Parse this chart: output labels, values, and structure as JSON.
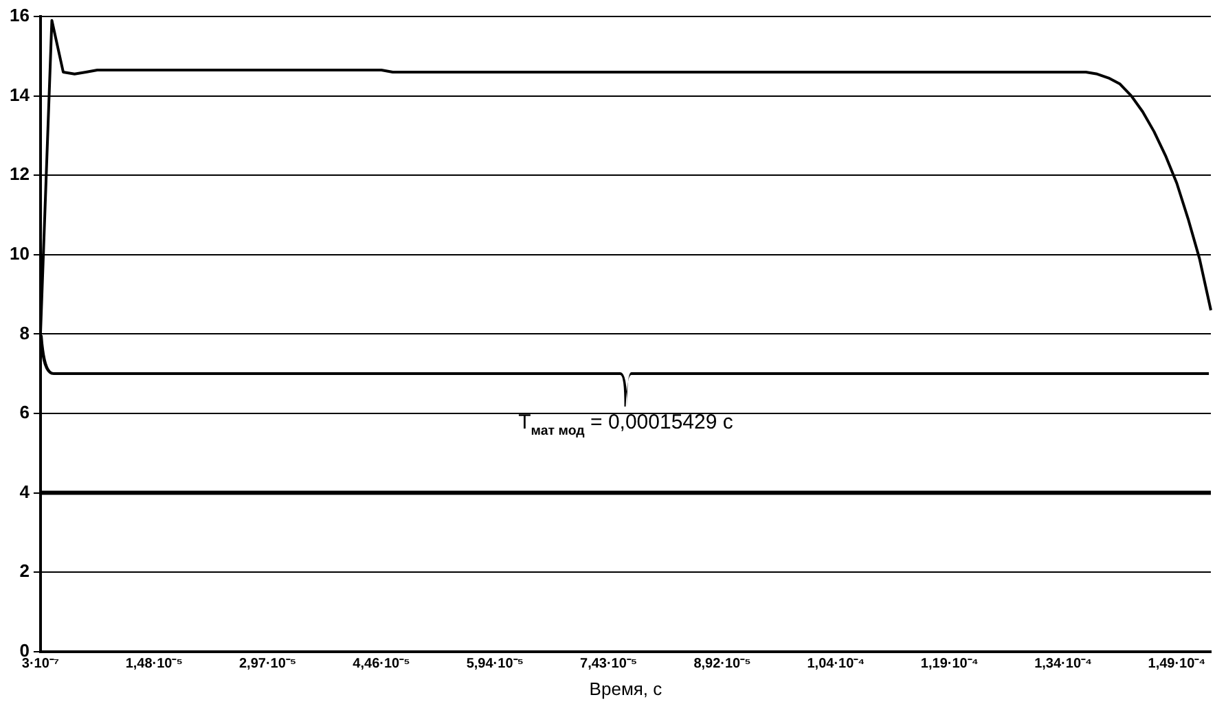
{
  "chart_data": {
    "type": "line",
    "xlabel": "Время, с",
    "categories": [
      "3·10⁻⁷",
      null,
      null,
      null,
      null,
      null,
      null,
      null,
      null,
      null,
      "1,48·10⁻⁵",
      null,
      null,
      null,
      null,
      null,
      null,
      null,
      null,
      null,
      "2,97·10⁻⁵",
      null,
      null,
      null,
      null,
      null,
      null,
      null,
      null,
      null,
      "4,46·10⁻⁵",
      null,
      null,
      null,
      null,
      null,
      null,
      null,
      null,
      null,
      "5,94·10⁻⁵",
      null,
      null,
      null,
      null,
      null,
      null,
      null,
      null,
      null,
      "7,43·10⁻⁵",
      null,
      null,
      null,
      null,
      null,
      null,
      null,
      null,
      null,
      "8,92·10⁻⁵",
      null,
      null,
      null,
      null,
      null,
      null,
      null,
      null,
      null,
      "1,04·10⁻⁴",
      null,
      null,
      null,
      null,
      null,
      null,
      null,
      null,
      null,
      "1,19·10⁻⁴",
      null,
      null,
      null,
      null,
      null,
      null,
      null,
      null,
      null,
      "1,34·10⁻⁴",
      null,
      null,
      null,
      null,
      null,
      null,
      null,
      null,
      null,
      "1,49·10⁻⁴",
      null,
      null,
      null
    ],
    "series": [
      {
        "color": "#000000",
        "values": [
          8.0,
          15.9,
          14.6,
          14.55,
          14.6,
          14.65,
          14.65,
          14.65,
          14.65,
          14.65,
          14.65,
          14.65,
          14.65,
          14.65,
          14.65,
          14.65,
          14.65,
          14.65,
          14.65,
          14.65,
          14.65,
          14.65,
          14.65,
          14.65,
          14.65,
          14.65,
          14.65,
          14.65,
          14.65,
          14.65,
          14.65,
          14.6,
          14.6,
          14.6,
          14.6,
          14.6,
          14.6,
          14.6,
          14.6,
          14.6,
          14.6,
          14.6,
          14.6,
          14.6,
          14.6,
          14.6,
          14.6,
          14.6,
          14.6,
          14.6,
          14.6,
          14.6,
          14.6,
          14.6,
          14.6,
          14.6,
          14.6,
          14.6,
          14.6,
          14.6,
          14.6,
          14.6,
          14.6,
          14.6,
          14.6,
          14.6,
          14.6,
          14.6,
          14.6,
          14.6,
          14.6,
          14.6,
          14.6,
          14.6,
          14.6,
          14.6,
          14.6,
          14.6,
          14.6,
          14.6,
          14.6,
          14.6,
          14.6,
          14.6,
          14.6,
          14.6,
          14.6,
          14.6,
          14.6,
          14.6,
          14.6,
          14.6,
          14.6,
          14.55,
          14.45,
          14.3,
          14.0,
          13.6,
          13.1,
          12.5,
          11.8,
          10.9,
          9.9,
          8.6
        ]
      }
    ],
    "ylim": [
      0,
      16
    ],
    "yticks": [
      0,
      2,
      4,
      6,
      8,
      10,
      12,
      14,
      16
    ],
    "grid": "y",
    "legend": false,
    "marker": "none",
    "line_style": "solid",
    "ref_lines": [
      {
        "axis": "y",
        "value": 4,
        "color": "#000000"
      }
    ],
    "annotations": [
      "T$_{мат мод}$ = 0,00015429 с"
    ]
  }
}
